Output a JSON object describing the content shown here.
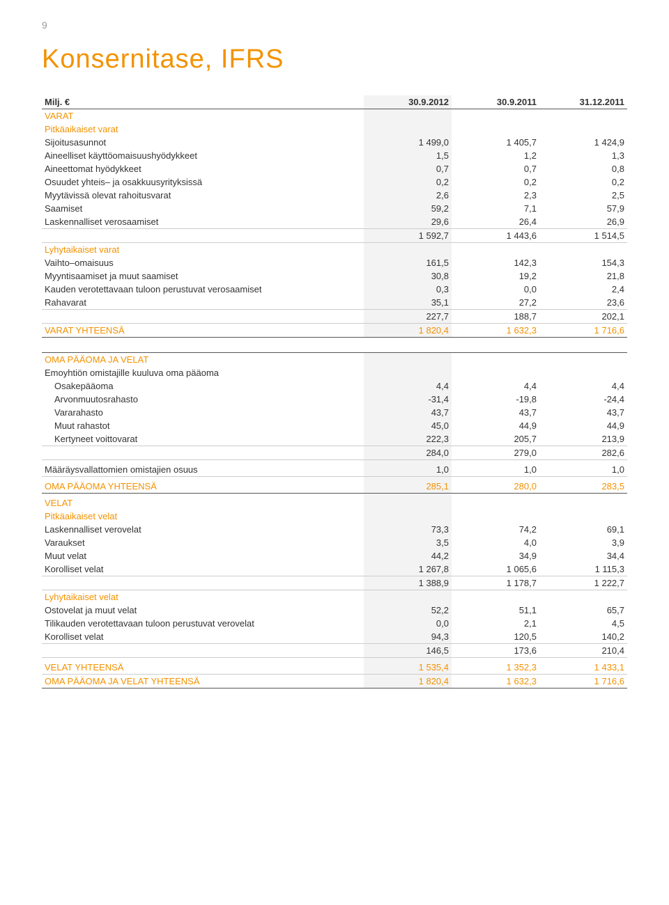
{
  "page_number": "9",
  "title": "Konsernitase, IFRS",
  "colors": {
    "accent": "#f39200",
    "text": "#333333",
    "shade": "#f3f3f3",
    "rule": "#555555",
    "lightrule": "#cccccc",
    "bg": "#ffffff"
  },
  "typography": {
    "title_fontsize": 38,
    "body_fontsize": 13,
    "font_family": "Arial"
  },
  "header": {
    "label": "Milj. €",
    "cols": [
      "30.9.2012",
      "30.9.2011",
      "31.12.2011"
    ]
  },
  "assets": {
    "heading": "VARAT",
    "sub1": "Pitkäaikaiset varat",
    "rows1": [
      {
        "l": "Sijoitusasunnot",
        "v": [
          "1 499,0",
          "1 405,7",
          "1 424,9"
        ]
      },
      {
        "l": "Aineelliset käyttöomaisuushyödykkeet",
        "v": [
          "1,5",
          "1,2",
          "1,3"
        ]
      },
      {
        "l": "Aineettomat hyödykkeet",
        "v": [
          "0,7",
          "0,7",
          "0,8"
        ]
      },
      {
        "l": "Osuudet yhteis– ja osakkuusyrityksissä",
        "v": [
          "0,2",
          "0,2",
          "0,2"
        ]
      },
      {
        "l": "Myytävissä olevat rahoitusvarat",
        "v": [
          "2,6",
          "2,3",
          "2,5"
        ]
      },
      {
        "l": "Saamiset",
        "v": [
          "59,2",
          "7,1",
          "57,9"
        ]
      },
      {
        "l": "Laskennalliset verosaamiset",
        "v": [
          "29,6",
          "26,4",
          "26,9"
        ]
      }
    ],
    "subtotal1": [
      "1 592,7",
      "1 443,6",
      "1 514,5"
    ],
    "sub2": "Lyhytaikaiset varat",
    "rows2": [
      {
        "l": "Vaihto–omaisuus",
        "v": [
          "161,5",
          "142,3",
          "154,3"
        ]
      },
      {
        "l": "Myyntisaamiset ja muut saamiset",
        "v": [
          "30,8",
          "19,2",
          "21,8"
        ]
      },
      {
        "l": "Kauden verotettavaan tuloon perustuvat verosaamiset",
        "v": [
          "0,3",
          "0,0",
          "2,4"
        ]
      },
      {
        "l": "Rahavarat",
        "v": [
          "35,1",
          "27,2",
          "23,6"
        ]
      }
    ],
    "subtotal2": [
      "227,7",
      "188,7",
      "202,1"
    ],
    "total_label": "VARAT YHTEENSÄ",
    "total": [
      "1 820,4",
      "1 632,3",
      "1 716,6"
    ]
  },
  "equity": {
    "heading": "OMA PÄÄOMA JA VELAT",
    "sub1": "Emoyhtiön omistajille kuuluva oma pääoma",
    "rows": [
      {
        "l": "Osakepääoma",
        "v": [
          "4,4",
          "4,4",
          "4,4"
        ]
      },
      {
        "l": "Arvonmuutosrahasto",
        "v": [
          "-31,4",
          "-19,8",
          "-24,4"
        ]
      },
      {
        "l": "Vararahasto",
        "v": [
          "43,7",
          "43,7",
          "43,7"
        ]
      },
      {
        "l": "Muut rahastot",
        "v": [
          "45,0",
          "44,9",
          "44,9"
        ]
      },
      {
        "l": "Kertyneet voittovarat",
        "v": [
          "222,3",
          "205,7",
          "213,9"
        ]
      }
    ],
    "subtotal": [
      "284,0",
      "279,0",
      "282,6"
    ],
    "minority_label": "Määräysvallattomien omistajien osuus",
    "minority": [
      "1,0",
      "1,0",
      "1,0"
    ],
    "total_label": "OMA PÄÄOMA YHTEENSÄ",
    "total": [
      "285,1",
      "280,0",
      "283,5"
    ]
  },
  "liabilities": {
    "heading": "VELAT",
    "sub1": "Pitkäaikaiset velat",
    "rows1": [
      {
        "l": "Laskennalliset verovelat",
        "v": [
          "73,3",
          "74,2",
          "69,1"
        ]
      },
      {
        "l": "Varaukset",
        "v": [
          "3,5",
          "4,0",
          "3,9"
        ]
      },
      {
        "l": "Muut velat",
        "v": [
          "44,2",
          "34,9",
          "34,4"
        ]
      },
      {
        "l": "Korolliset velat",
        "v": [
          "1 267,8",
          "1 065,6",
          "1 115,3"
        ]
      }
    ],
    "subtotal1": [
      "1 388,9",
      "1 178,7",
      "1 222,7"
    ],
    "sub2": "Lyhytaikaiset velat",
    "rows2": [
      {
        "l": "Ostovelat ja muut velat",
        "v": [
          "52,2",
          "51,1",
          "65,7"
        ]
      },
      {
        "l": "Tilikauden verotettavaan tuloon perustuvat verovelat",
        "v": [
          "0,0",
          "2,1",
          "4,5"
        ]
      },
      {
        "l": "Korolliset velat",
        "v": [
          "94,3",
          "120,5",
          "140,2"
        ]
      }
    ],
    "subtotal2": [
      "146,5",
      "173,6",
      "210,4"
    ],
    "total1_label": "VELAT YHTEENSÄ",
    "total1": [
      "1 535,4",
      "1 352,3",
      "1 433,1"
    ],
    "total2_label": "OMA PÄÄOMA JA VELAT YHTEENSÄ",
    "total2": [
      "1 820,4",
      "1 632,3",
      "1 716,6"
    ]
  }
}
